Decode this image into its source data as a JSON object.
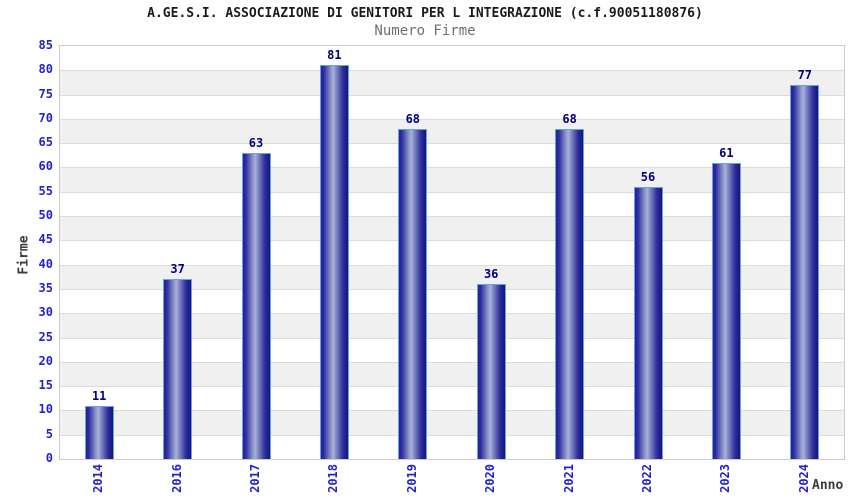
{
  "chart_data": {
    "type": "bar",
    "title": "A.GE.S.I. ASSOCIAZIONE DI GENITORI PER L INTEGRAZIONE (c.f.90051180876)",
    "subtitle": "Numero Firme",
    "xlabel": "Anno",
    "ylabel": "Firme",
    "categories": [
      "2014",
      "2016",
      "2017",
      "2018",
      "2019",
      "2020",
      "2021",
      "2022",
      "2023",
      "2024"
    ],
    "values": [
      11,
      37,
      63,
      81,
      68,
      36,
      68,
      56,
      61,
      77
    ],
    "ylim": [
      0,
      85
    ],
    "ytick_step": 5,
    "grid": "horizontal-bands-alternating",
    "legend": "none",
    "colors": {
      "title": "#1b1b1b",
      "subtitle": "#6e6e6e",
      "axis_title": "#3c3c3c",
      "tick_label": "#2323cc",
      "value_label": "#000080",
      "plot_border": "#cccccc",
      "grid_line": "#dcdcdc",
      "band_gray": "#f0f0f0",
      "band_white": "#ffffff",
      "bar_border": "#67a3e8",
      "bar_gradient": [
        "#23239a 0%",
        "#2c2ca0 10%",
        "#8a93c8 36%",
        "#aab0d8 45%",
        "#7a83c0 58%",
        "#2b2b9c 82%",
        "#16167e 100%"
      ]
    }
  }
}
